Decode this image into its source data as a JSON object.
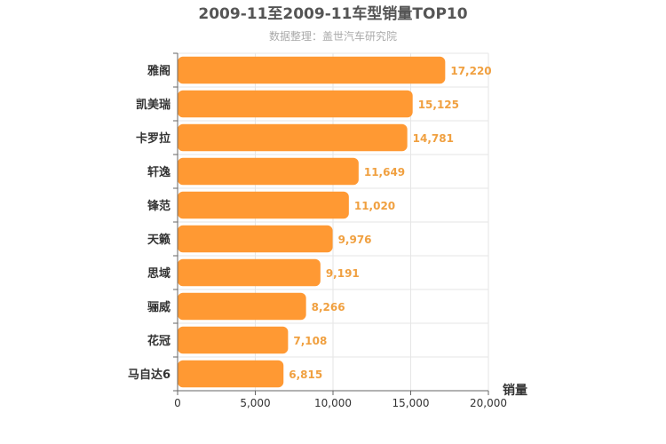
{
  "chart_data": {
    "type": "bar",
    "orientation": "horizontal",
    "title": "2009-11至2009-11车型销量TOP10",
    "subtitle": "数据整理：盖世汽车研究院",
    "categories": [
      "雅阁",
      "凯美瑞",
      "卡罗拉",
      "轩逸",
      "锋范",
      "天籁",
      "思域",
      "骊威",
      "花冠",
      "马自达6"
    ],
    "values": [
      17220,
      15125,
      14781,
      11649,
      11020,
      9976,
      9191,
      8266,
      7108,
      6815
    ],
    "data_labels": [
      "17,220",
      "15,125",
      "14,781",
      "11,649",
      "11,020",
      "9,976",
      "9,191",
      "8,266",
      "7,108",
      "6,815"
    ],
    "xlabel": "销量",
    "ylabel": "",
    "xlim": [
      0,
      20000
    ],
    "ticks": [
      0,
      5000,
      10000,
      15000,
      20000
    ],
    "tick_labels": [
      "0",
      "5,000",
      "10,000",
      "15,000",
      "20,000"
    ],
    "grid": true,
    "legend": "none",
    "colors": {
      "bar": "#ff9933",
      "data_label": "#f0a040"
    }
  }
}
